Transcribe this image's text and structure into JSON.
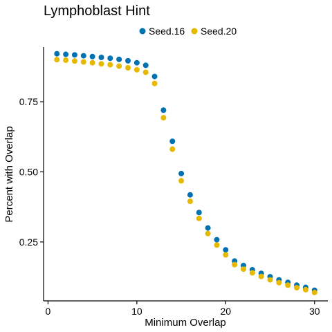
{
  "chart_data": {
    "type": "scatter",
    "title": "Lymphoblast Hint",
    "xlabel": "Minimum Overlap",
    "ylabel": "Percent with Overlap",
    "xlim": [
      -0.5,
      31.5
    ],
    "ylim": [
      0.04,
      0.945
    ],
    "xticks": [
      0,
      10,
      20,
      30
    ],
    "yticks": [
      0.25,
      0.5,
      0.75
    ],
    "ytick_labels": [
      "0.25",
      "0.50",
      "0.75"
    ],
    "grid": false,
    "legend_position": "top",
    "x": [
      1,
      2,
      3,
      4,
      5,
      6,
      7,
      8,
      9,
      10,
      11,
      12,
      13,
      14,
      15,
      16,
      17,
      18,
      19,
      20,
      21,
      22,
      23,
      24,
      25,
      26,
      27,
      28,
      29,
      30
    ],
    "series": [
      {
        "name": "Seed.16",
        "color": "#0072B2",
        "values": [
          0.921,
          0.919,
          0.917,
          0.914,
          0.911,
          0.908,
          0.905,
          0.901,
          0.896,
          0.889,
          0.88,
          0.84,
          0.72,
          0.609,
          0.494,
          0.418,
          0.355,
          0.3,
          0.258,
          0.222,
          0.182,
          0.166,
          0.151,
          0.138,
          0.126,
          0.115,
          0.106,
          0.096,
          0.088,
          0.078
        ]
      },
      {
        "name": "Seed.20",
        "color": "#E7B800",
        "values": [
          0.9,
          0.898,
          0.895,
          0.892,
          0.889,
          0.885,
          0.882,
          0.877,
          0.871,
          0.864,
          0.855,
          0.815,
          0.693,
          0.581,
          0.468,
          0.395,
          0.334,
          0.28,
          0.239,
          0.204,
          0.169,
          0.153,
          0.14,
          0.127,
          0.115,
          0.105,
          0.096,
          0.087,
          0.08,
          0.07
        ]
      }
    ]
  }
}
